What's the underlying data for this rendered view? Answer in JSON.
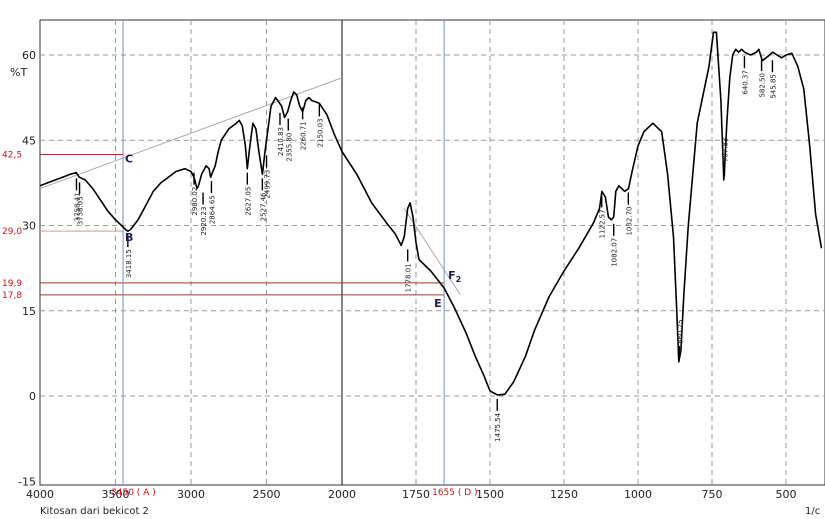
{
  "chart_data": {
    "type": "line",
    "title": "",
    "xlabel": "1/c",
    "ylabel": "%T",
    "sample_label": "Kitosan dari bekicot 2",
    "xlim": [
      4000,
      380
    ],
    "ylim": [
      -15,
      66
    ],
    "x_ticks": [
      "4000",
      "3500",
      "3000",
      "2500",
      "2000",
      "1750",
      "1500",
      "1250",
      "1000",
      "750",
      "500"
    ],
    "y_ticks": [
      "60",
      "45",
      "30",
      "15",
      "0",
      "-15"
    ],
    "grid": true,
    "series": [
      {
        "x": [
          4000,
          3950,
          3900,
          3850,
          3800,
          3760,
          3740,
          3700,
          3650,
          3600,
          3550,
          3500,
          3460,
          3430,
          3418,
          3400,
          3350,
          3300,
          3250,
          3200,
          3150,
          3100,
          3040,
          3000,
          2980,
          2960,
          2950,
          2930,
          2900,
          2880,
          2870,
          2840,
          2820,
          2800,
          2750,
          2700,
          2680,
          2660,
          2640,
          2627,
          2610,
          2590,
          2570,
          2550,
          2527,
          2510,
          2490,
          2470,
          2440,
          2400,
          2380,
          2360,
          2340,
          2320,
          2300,
          2280,
          2260,
          2240,
          2220,
          2200,
          2150,
          2100,
          2050,
          2000,
          1950,
          1900,
          1850,
          1820,
          1800,
          1790,
          1778,
          1770,
          1760,
          1750,
          1740,
          1700,
          1655,
          1620,
          1580,
          1550,
          1520,
          1500,
          1475,
          1450,
          1420,
          1380,
          1350,
          1300,
          1250,
          1200,
          1150,
          1130,
          1122,
          1110,
          1100,
          1090,
          1082,
          1075,
          1065,
          1055,
          1045,
          1032,
          1020,
          1000,
          980,
          950,
          920,
          900,
          880,
          870,
          862,
          855,
          845,
          830,
          800,
          760,
          745,
          735,
          720,
          710,
          707,
          700,
          690,
          680,
          670,
          660,
          650,
          640,
          620,
          600,
          592,
          580,
          560,
          545,
          530,
          515,
          500,
          480,
          460,
          440,
          420,
          400,
          380
        ],
        "y": [
          37,
          37.5,
          38,
          38.5,
          39,
          39.3,
          38.5,
          38,
          36.5,
          34.5,
          32.5,
          31,
          30,
          29.2,
          29,
          29.3,
          31,
          33.5,
          36,
          37.5,
          38.5,
          39.5,
          40,
          39.5,
          38.5,
          36.5,
          37,
          39,
          40.5,
          40,
          38.5,
          40.5,
          43,
          45,
          47,
          48,
          48.5,
          47.5,
          44,
          40,
          44,
          48,
          47,
          43,
          39,
          43,
          47,
          51,
          52.5,
          51,
          49,
          50,
          52,
          53.5,
          53,
          51,
          50,
          52,
          52.5,
          52,
          51.5,
          49.5,
          46,
          43,
          39,
          34,
          30.5,
          28.5,
          26.5,
          28,
          33,
          34,
          31.5,
          27,
          24,
          22,
          19,
          15.5,
          11,
          7,
          3.5,
          0.9,
          0.2,
          0.3,
          2.5,
          7,
          11.5,
          17.5,
          22,
          26,
          30.5,
          33,
          36,
          35,
          31.5,
          31,
          31.5,
          36,
          37,
          36.5,
          36,
          36.5,
          39.5,
          44,
          46.5,
          48,
          46.5,
          39,
          28,
          16,
          6,
          8,
          18,
          30,
          48,
          58,
          64,
          64,
          52,
          38,
          40.5,
          48,
          56,
          60,
          61,
          60.5,
          61,
          60.5,
          60,
          60.5,
          61,
          59,
          59.8,
          60.5,
          60,
          59.5,
          60,
          60.3,
          58,
          54,
          44,
          32,
          26
        ]
      }
    ],
    "peak_labels": [
      "3758.41",
      "3738.05",
      "3418.15",
      "2980.02",
      "2920.23",
      "2864.65",
      "2627.05",
      "2527.46",
      "2499.73",
      "2410.83",
      "2355.80",
      "2260.71",
      "2150.03",
      "1778.01",
      "1475.54",
      "1122.57",
      "1082.07",
      "1032.70",
      "860.25",
      "707.83",
      "640.37",
      "582.50",
      "545.85"
    ],
    "peak_x": [
      3758.41,
      3738.05,
      3418.15,
      2980.02,
      2920.23,
      2864.65,
      2627.05,
      2527.46,
      2499.73,
      2410.83,
      2355.8,
      2260.71,
      2150.03,
      1778.01,
      1475.54,
      1122.57,
      1082.07,
      1032.7,
      860.25,
      707.83,
      640.37,
      582.5,
      545.85
    ],
    "peak_y": [
      39,
      38.3,
      29,
      40,
      36.5,
      38.5,
      40,
      39,
      43,
      50.5,
      49.5,
      51.5,
      52,
      26.5,
      0.2,
      36,
      31,
      36.5,
      6,
      38,
      60.5,
      60,
      59.8
    ],
    "peak_side": [
      "below",
      "below",
      "below",
      "below",
      "below",
      "below",
      "below",
      "below",
      "below",
      "below",
      "below",
      "below",
      "below",
      "below",
      "below",
      "below",
      "below",
      "below",
      "above",
      "above",
      "below",
      "below",
      "below"
    ],
    "annotations": {
      "levels": [
        {
          "value": 42.5,
          "label": "42,5"
        },
        {
          "value": 29.0,
          "label": "29,0"
        },
        {
          "value": 19.9,
          "label": "19,9"
        },
        {
          "value": 17.8,
          "label": "17,8"
        }
      ],
      "wavenumbers": [
        {
          "value": 3450,
          "label": "3450 ( A )"
        },
        {
          "value": 1655,
          "label": "1655 ( D )"
        }
      ],
      "points": [
        {
          "name": "C",
          "x": 3450,
          "y": 42.5
        },
        {
          "name": "B",
          "x": 3450,
          "y": 29.0
        },
        {
          "name": "F",
          "sub": "2",
          "x": 1655,
          "y": 19.9
        },
        {
          "name": "E",
          "x": 1655,
          "y": 17.8
        }
      ],
      "baselines": [
        {
          "from": [
            4000,
            36.5
          ],
          "to": [
            2000,
            56
          ]
        },
        {
          "from": [
            1790,
            33
          ],
          "to": [
            1600,
            17.8
          ]
        }
      ]
    },
    "colors": {
      "trace": "#000000",
      "grid": "#9a9a9a",
      "level_line": "#b03030",
      "level_text": "#c01818",
      "wavenumber_line": "#6f8fc8",
      "wavenumber_text": "#c01818",
      "baseline": "#a8a8a8"
    }
  }
}
